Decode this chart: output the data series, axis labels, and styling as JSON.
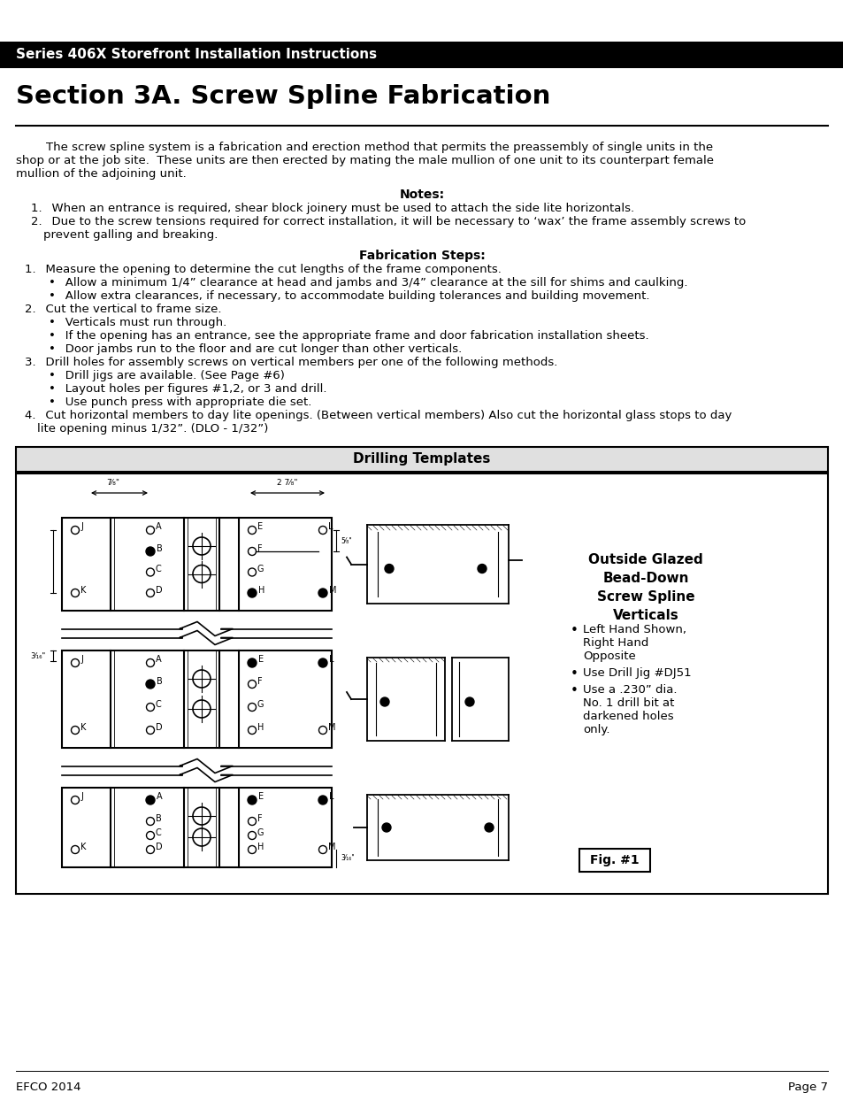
{
  "header_text": "Series 406X Storefront Installation Instructions",
  "header_bg": "#000000",
  "header_fg": "#ffffff",
  "section_title": "Section 3A. Screw Spline Fabrication",
  "body_text": "        The screw spline system is a fabrication and erection method that permits the preassembly of single units in the\nshop or at the job site.  These units are then erected by mating the male mullion of one unit to its counterpart female\nmullion of the adjoining unit.",
  "notes_title": "Notes:",
  "notes": [
    "When an entrance is required, shear block joinery must be used to attach the side lite horizontals.",
    "Due to the screw tensions required for correct installation, it will be necessary to ‘wax’ the frame assembly screws to\n    prevent galling and breaking."
  ],
  "fab_title": "Fabrication Steps:",
  "fab_steps": [
    {
      "text": "Measure the opening to determine the cut lengths of the frame components.",
      "bullets": [
        "Allow a minimum 1/4” clearance at head and jambs and 3/4” clearance at the sill for shims and caulking.",
        "Allow extra clearances, if necessary, to accommodate building tolerances and building movement."
      ]
    },
    {
      "text": "Cut the vertical to frame size.",
      "bullets": [
        "Verticals must run through.",
        "If the opening has an entrance, see the appropriate frame and door fabrication installation sheets.",
        "Door jambs run to the floor and are cut longer than other verticals."
      ]
    },
    {
      "text": "Drill holes for assembly screws on vertical members per one of the following methods.",
      "bullets": [
        "Drill jigs are available. (See Page #6)",
        "Layout holes per figures #1,2, or 3 and drill.",
        "Use punch press with appropriate die set."
      ]
    },
    {
      "text": "Cut horizontal members to day lite openings. (Between vertical members) Also cut the horizontal glass stops to day",
      "text2": "lite opening minus 1/32”. (DLO - 1/32”)",
      "bullets": []
    }
  ],
  "drill_title": "Drilling Templates",
  "right_side_title": "Outside Glazed\nBead-Down\nScrew Spline\nVerticals",
  "right_side_bullets": [
    "Left Hand Shown,\nRight Hand\nOpposite",
    "Use Drill Jig #DJ51",
    "Use a .230” dia.\nNo. 1 drill bit at\ndarkened holes\nonly."
  ],
  "fig_label": "Fig. #1",
  "footer_left": "EFCO 2014",
  "footer_right": "Page 7",
  "bg_color": "#ffffff",
  "text_color": "#000000"
}
